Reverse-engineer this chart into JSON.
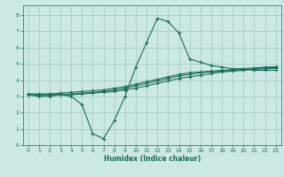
{
  "xlabel": "Humidex (Indice chaleur)",
  "ylabel": "",
  "bg_color": "#cce8e4",
  "line_color": "#1a6b5a",
  "grid_color": "#aad0c8",
  "xlim": [
    -0.5,
    23.5
  ],
  "ylim": [
    0,
    8.6
  ],
  "xticks": [
    0,
    1,
    2,
    3,
    4,
    5,
    6,
    7,
    8,
    9,
    10,
    11,
    12,
    13,
    14,
    15,
    16,
    17,
    18,
    19,
    20,
    21,
    22,
    23
  ],
  "yticks": [
    0,
    1,
    2,
    3,
    4,
    5,
    6,
    7,
    8
  ],
  "main_curve_x": [
    0,
    1,
    2,
    3,
    4,
    5,
    6,
    7,
    8,
    9,
    10,
    11,
    12,
    13,
    14,
    15,
    16,
    17,
    18,
    19,
    20,
    21,
    22,
    23
  ],
  "main_curve_y": [
    3.1,
    3.0,
    3.0,
    3.1,
    3.0,
    2.5,
    0.7,
    0.4,
    1.5,
    3.0,
    4.8,
    6.3,
    7.8,
    7.6,
    6.9,
    5.3,
    5.1,
    4.9,
    4.8,
    4.7,
    4.7,
    4.6,
    4.6,
    4.6
  ],
  "line2_x": [
    0,
    1,
    2,
    3,
    4,
    5,
    6,
    7,
    8,
    9,
    10,
    11,
    12,
    13,
    14,
    15,
    16,
    17,
    18,
    19,
    20,
    21,
    22,
    23
  ],
  "line2_y": [
    3.1,
    3.1,
    3.1,
    3.1,
    3.1,
    3.15,
    3.2,
    3.25,
    3.3,
    3.4,
    3.5,
    3.65,
    3.8,
    3.95,
    4.1,
    4.2,
    4.3,
    4.4,
    4.5,
    4.55,
    4.6,
    4.65,
    4.7,
    4.72
  ],
  "line3_x": [
    0,
    1,
    2,
    3,
    4,
    5,
    6,
    7,
    8,
    9,
    10,
    11,
    12,
    13,
    14,
    15,
    16,
    17,
    18,
    19,
    20,
    21,
    22,
    23
  ],
  "line3_y": [
    3.1,
    3.1,
    3.1,
    3.1,
    3.15,
    3.2,
    3.25,
    3.3,
    3.4,
    3.5,
    3.65,
    3.8,
    3.95,
    4.1,
    4.25,
    4.35,
    4.45,
    4.5,
    4.55,
    4.6,
    4.65,
    4.7,
    4.75,
    4.77
  ],
  "line4_x": [
    0,
    1,
    2,
    3,
    4,
    5,
    6,
    7,
    8,
    9,
    10,
    11,
    12,
    13,
    14,
    15,
    16,
    17,
    18,
    19,
    20,
    21,
    22,
    23
  ],
  "line4_y": [
    3.15,
    3.15,
    3.15,
    3.2,
    3.25,
    3.3,
    3.35,
    3.4,
    3.5,
    3.6,
    3.75,
    3.9,
    4.05,
    4.2,
    4.35,
    4.45,
    4.5,
    4.55,
    4.6,
    4.65,
    4.7,
    4.75,
    4.8,
    4.82
  ]
}
